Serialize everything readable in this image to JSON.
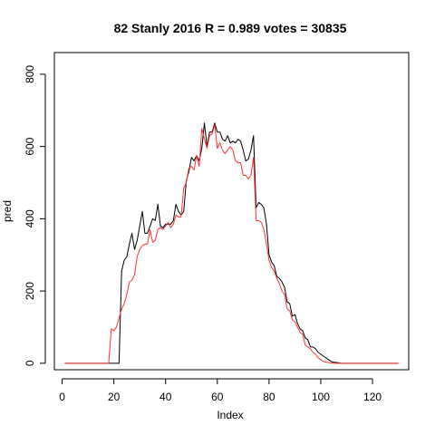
{
  "chart_data": {
    "type": "line",
    "title": "82 Stanly 2016 R = 0.989 votes = 30835",
    "xlabel": "Index",
    "ylabel": "pred",
    "xlim": [
      -3,
      134
    ],
    "ylim": [
      -18,
      860
    ],
    "xticks": [
      0,
      20,
      40,
      60,
      80,
      100,
      120
    ],
    "yticks": [
      0,
      200,
      400,
      600,
      800
    ],
    "grid": false,
    "legend": "none",
    "series": [
      {
        "color": "#000000",
        "x": [
          1,
          2,
          3,
          4,
          5,
          6,
          7,
          8,
          9,
          10,
          11,
          12,
          13,
          14,
          15,
          16,
          17,
          18,
          19,
          20,
          21,
          22,
          23,
          24,
          25,
          26,
          27,
          28,
          29,
          30,
          31,
          32,
          33,
          34,
          35,
          36,
          37,
          38,
          39,
          40,
          41,
          42,
          43,
          44,
          45,
          46,
          47,
          48,
          49,
          50,
          51,
          52,
          53,
          54,
          55,
          56,
          57,
          58,
          59,
          60,
          61,
          62,
          63,
          64,
          65,
          66,
          67,
          68,
          69,
          70,
          71,
          72,
          73,
          74,
          75,
          76,
          77,
          78,
          79,
          80,
          81,
          82,
          83,
          84,
          85,
          86,
          87,
          88,
          89,
          90,
          91,
          92,
          93,
          94,
          95,
          96,
          97,
          98,
          99,
          100,
          101,
          102,
          103,
          104,
          105,
          106,
          107,
          108,
          109,
          110,
          111,
          112,
          113,
          114,
          115,
          116,
          117,
          118,
          119,
          120,
          121,
          122,
          123,
          124,
          125,
          126,
          127,
          128,
          129,
          130
        ],
        "y": [
          0,
          0,
          0,
          0,
          0,
          0,
          0,
          0,
          0,
          0,
          0,
          0,
          0,
          0,
          0,
          0,
          0,
          0,
          0,
          0,
          0,
          0,
          255,
          285,
          295,
          330,
          360,
          315,
          340,
          380,
          420,
          360,
          360,
          380,
          400,
          395,
          440,
          380,
          375,
          385,
          385,
          385,
          395,
          440,
          420,
          410,
          420,
          505,
          530,
          570,
          560,
          575,
          560,
          595,
          665,
          600,
          640,
          640,
          665,
          640,
          640,
          620,
          615,
          630,
          610,
          615,
          610,
          620,
          615,
          590,
          560,
          565,
          590,
          630,
          430,
          445,
          440,
          430,
          385,
          300,
          280,
          270,
          240,
          235,
          225,
          210,
          170,
          165,
          130,
          135,
          110,
          95,
          90,
          70,
          65,
          45,
          45,
          40,
          30,
          25,
          20,
          15,
          10,
          5,
          3,
          2,
          1,
          0,
          0,
          0,
          0,
          0,
          0,
          0,
          0,
          0,
          0,
          0,
          0,
          0,
          0,
          0,
          0,
          0,
          0,
          0,
          0,
          0,
          0,
          0
        ]
      },
      {
        "color": "#ff3333",
        "x": [
          1,
          2,
          3,
          4,
          5,
          6,
          7,
          8,
          9,
          10,
          11,
          12,
          13,
          14,
          15,
          16,
          17,
          18,
          19,
          20,
          21,
          22,
          23,
          24,
          25,
          26,
          27,
          28,
          29,
          30,
          31,
          32,
          33,
          34,
          35,
          36,
          37,
          38,
          39,
          40,
          41,
          42,
          43,
          44,
          45,
          46,
          47,
          48,
          49,
          50,
          51,
          52,
          53,
          54,
          55,
          56,
          57,
          58,
          59,
          60,
          61,
          62,
          63,
          64,
          65,
          66,
          67,
          68,
          69,
          70,
          71,
          72,
          73,
          74,
          75,
          76,
          77,
          78,
          79,
          80,
          81,
          82,
          83,
          84,
          85,
          86,
          87,
          88,
          89,
          90,
          91,
          92,
          93,
          94,
          95,
          96,
          97,
          98,
          99,
          100,
          101,
          102,
          103,
          104,
          105,
          106,
          107,
          108,
          109,
          110,
          111,
          112,
          113,
          114,
          115,
          116,
          117,
          118,
          119,
          120,
          121,
          122,
          123,
          124,
          125,
          126,
          127,
          128,
          129,
          130
        ],
        "y": [
          0,
          0,
          0,
          0,
          0,
          0,
          0,
          0,
          0,
          0,
          0,
          0,
          0,
          0,
          0,
          0,
          0,
          0,
          95,
          90,
          100,
          125,
          150,
          165,
          190,
          225,
          230,
          245,
          295,
          315,
          325,
          330,
          330,
          370,
          335,
          340,
          370,
          375,
          370,
          380,
          390,
          375,
          385,
          410,
          405,
          405,
          485,
          500,
          540,
          545,
          535,
          575,
          545,
          650,
          620,
          595,
          630,
          635,
          660,
          595,
          610,
          590,
          580,
          590,
          600,
          590,
          560,
          555,
          555,
          520,
          520,
          510,
          520,
          570,
          395,
          395,
          390,
          370,
          330,
          285,
          265,
          255,
          235,
          220,
          200,
          190,
          150,
          145,
          120,
          115,
          100,
          85,
          80,
          50,
          45,
          40,
          30,
          25,
          15,
          10,
          5,
          3,
          2,
          1,
          0,
          0,
          0,
          0,
          0,
          0,
          0,
          0,
          0,
          0,
          0,
          0,
          0,
          0,
          0,
          0,
          0,
          0,
          0,
          0,
          0,
          0,
          0,
          0,
          0,
          0
        ]
      }
    ]
  }
}
